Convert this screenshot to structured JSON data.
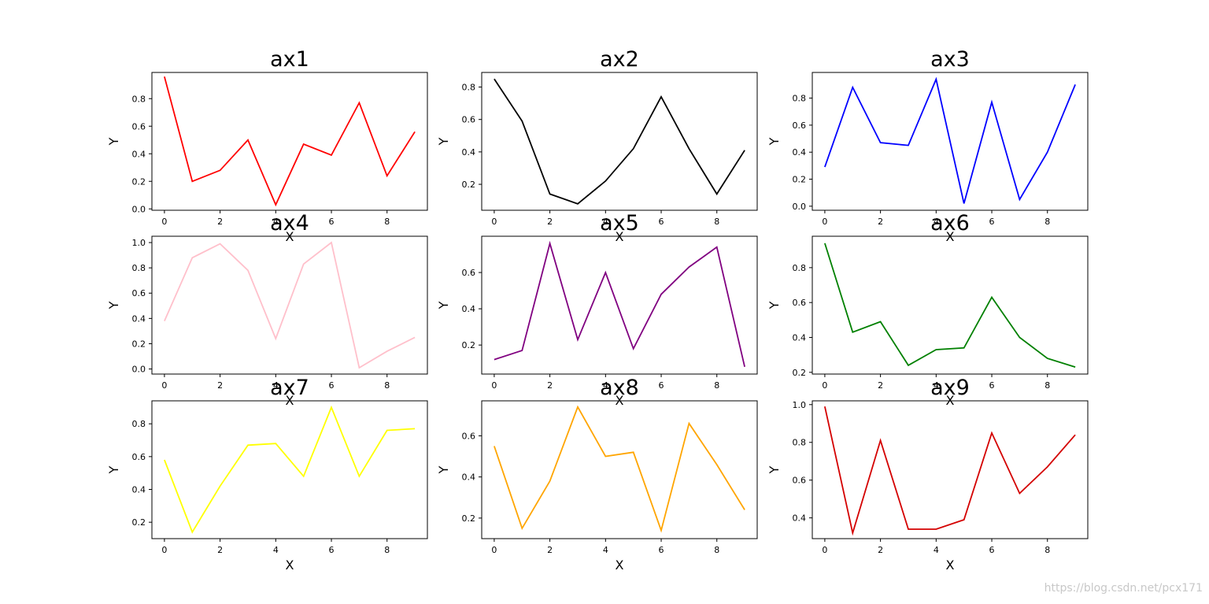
{
  "watermark": "https://blog.csdn.net/pcx171",
  "chart_data": [
    {
      "type": "line",
      "title": "ax1",
      "xlabel": "X",
      "ylabel": "Y",
      "color": "#ff0000",
      "x": [
        0,
        1,
        2,
        3,
        4,
        5,
        6,
        7,
        8,
        9
      ],
      "values": [
        0.96,
        0.2,
        0.28,
        0.5,
        0.03,
        0.47,
        0.39,
        0.77,
        0.24,
        0.56
      ],
      "ylim": [
        -0.01,
        0.99
      ],
      "yticks": [
        0.0,
        0.2,
        0.4,
        0.6,
        0.8
      ],
      "yticklabels": [
        "0.0",
        "0.2",
        "0.4",
        "0.6",
        "0.8"
      ],
      "xticks": [
        0,
        2,
        4,
        6,
        8
      ]
    },
    {
      "type": "line",
      "title": "ax2",
      "xlabel": "X",
      "ylabel": "Y",
      "color": "#000000",
      "x": [
        0,
        1,
        2,
        3,
        4,
        5,
        6,
        7,
        8,
        9
      ],
      "values": [
        0.85,
        0.59,
        0.14,
        0.08,
        0.22,
        0.42,
        0.74,
        0.42,
        0.14,
        0.41
      ],
      "ylim": [
        0.04,
        0.89
      ],
      "yticks": [
        0.2,
        0.4,
        0.6,
        0.8
      ],
      "yticklabels": [
        "0.2",
        "0.4",
        "0.6",
        "0.8"
      ],
      "xticks": [
        0,
        2,
        4,
        6,
        8
      ]
    },
    {
      "type": "line",
      "title": "ax3",
      "xlabel": "X",
      "ylabel": "Y",
      "color": "#0000ff",
      "x": [
        0,
        1,
        2,
        3,
        4,
        5,
        6,
        7,
        8,
        9
      ],
      "values": [
        0.29,
        0.88,
        0.47,
        0.45,
        0.94,
        0.02,
        0.77,
        0.05,
        0.4,
        0.9
      ],
      "ylim": [
        -0.03,
        0.99
      ],
      "yticks": [
        0.0,
        0.2,
        0.4,
        0.6,
        0.8
      ],
      "yticklabels": [
        "0.0",
        "0.2",
        "0.4",
        "0.6",
        "0.8"
      ],
      "xticks": [
        0,
        2,
        4,
        6,
        8
      ]
    },
    {
      "type": "line",
      "title": "ax4",
      "xlabel": "X",
      "ylabel": "Y",
      "color": "#ffc0cb",
      "x": [
        0,
        1,
        2,
        3,
        4,
        5,
        6,
        7,
        8,
        9
      ],
      "values": [
        0.38,
        0.88,
        0.99,
        0.78,
        0.24,
        0.83,
        1.0,
        0.01,
        0.14,
        0.25
      ],
      "ylim": [
        -0.04,
        1.05
      ],
      "yticks": [
        0.0,
        0.2,
        0.4,
        0.6,
        0.8,
        1.0
      ],
      "yticklabels": [
        "0.0",
        "0.2",
        "0.4",
        "0.6",
        "0.8",
        "1.0"
      ],
      "xticks": [
        0,
        2,
        4,
        6,
        8
      ]
    },
    {
      "type": "line",
      "title": "ax5",
      "xlabel": "X",
      "ylabel": "Y",
      "color": "#800080",
      "x": [
        0,
        1,
        2,
        3,
        4,
        5,
        6,
        7,
        8,
        9
      ],
      "values": [
        0.12,
        0.17,
        0.76,
        0.23,
        0.6,
        0.18,
        0.48,
        0.63,
        0.74,
        0.08
      ],
      "ylim": [
        0.04,
        0.8
      ],
      "yticks": [
        0.2,
        0.4,
        0.6
      ],
      "yticklabels": [
        "0.2",
        "0.4",
        "0.6"
      ],
      "xticks": [
        0,
        2,
        4,
        6,
        8
      ]
    },
    {
      "type": "line",
      "title": "ax6",
      "xlabel": "X",
      "ylabel": "Y",
      "color": "#008000",
      "x": [
        0,
        1,
        2,
        3,
        4,
        5,
        6,
        7,
        8,
        9
      ],
      "values": [
        0.94,
        0.43,
        0.49,
        0.24,
        0.33,
        0.34,
        0.63,
        0.4,
        0.28,
        0.23
      ],
      "ylim": [
        0.19,
        0.98
      ],
      "yticks": [
        0.2,
        0.4,
        0.6,
        0.8
      ],
      "yticklabels": [
        "0.2",
        "0.4",
        "0.6",
        "0.8"
      ],
      "xticks": [
        0,
        2,
        4,
        6,
        8
      ]
    },
    {
      "type": "line",
      "title": "ax7",
      "xlabel": "X",
      "ylabel": "Y",
      "color": "#ffff00",
      "x": [
        0,
        1,
        2,
        3,
        4,
        5,
        6,
        7,
        8,
        9
      ],
      "values": [
        0.58,
        0.14,
        0.42,
        0.67,
        0.68,
        0.48,
        0.9,
        0.48,
        0.76,
        0.77
      ],
      "ylim": [
        0.1,
        0.94
      ],
      "yticks": [
        0.2,
        0.4,
        0.6,
        0.8
      ],
      "yticklabels": [
        "0.2",
        "0.4",
        "0.6",
        "0.8"
      ],
      "xticks": [
        0,
        2,
        4,
        6,
        8
      ]
    },
    {
      "type": "line",
      "title": "ax8",
      "xlabel": "X",
      "ylabel": "Y",
      "color": "#ffa500",
      "x": [
        0,
        1,
        2,
        3,
        4,
        5,
        6,
        7,
        8,
        9
      ],
      "values": [
        0.55,
        0.15,
        0.38,
        0.74,
        0.5,
        0.52,
        0.14,
        0.66,
        0.46,
        0.24
      ],
      "ylim": [
        0.1,
        0.77
      ],
      "yticks": [
        0.2,
        0.4,
        0.6
      ],
      "yticklabels": [
        "0.2",
        "0.4",
        "0.6"
      ],
      "xticks": [
        0,
        2,
        4,
        6,
        8
      ]
    },
    {
      "type": "line",
      "title": "ax9",
      "xlabel": "X",
      "ylabel": "Y",
      "color": "#d40000",
      "x": [
        0,
        1,
        2,
        3,
        4,
        5,
        6,
        7,
        8,
        9
      ],
      "values": [
        0.99,
        0.32,
        0.81,
        0.34,
        0.34,
        0.39,
        0.85,
        0.53,
        0.67,
        0.84
      ],
      "ylim": [
        0.29,
        1.02
      ],
      "yticks": [
        0.4,
        0.6,
        0.8,
        1.0
      ],
      "yticklabels": [
        "0.4",
        "0.6",
        "0.8",
        "1.0"
      ],
      "xticks": [
        0,
        2,
        4,
        6,
        8
      ]
    }
  ]
}
